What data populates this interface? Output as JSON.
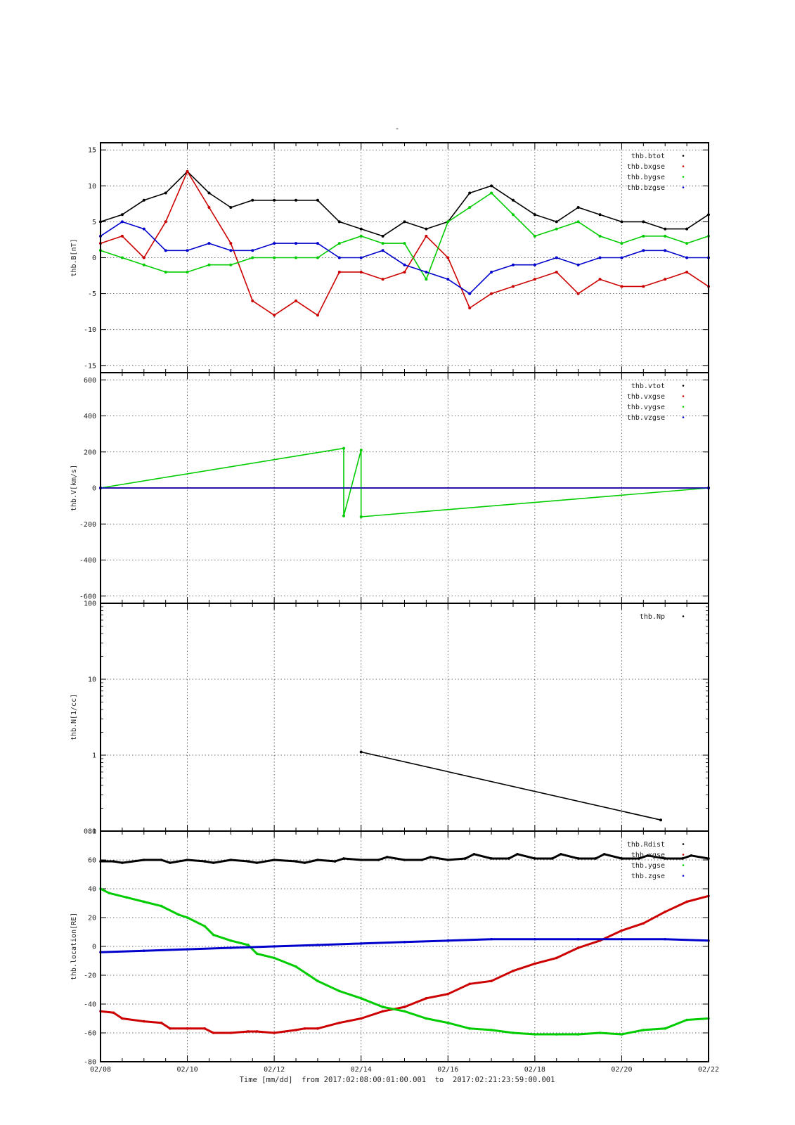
{
  "header": {
    "title": "-"
  },
  "footer": {
    "x_axis_label": "Time [mm/dd]  from 2017:02:08:00:01:00.001  to  2017:02:21:23:59:00.001"
  },
  "x_axis": {
    "range": [
      0,
      14
    ],
    "ticks": [
      {
        "v": 0,
        "label": "02/08"
      },
      {
        "v": 2,
        "label": "02/10"
      },
      {
        "v": 4,
        "label": "02/12"
      },
      {
        "v": 6,
        "label": "02/14"
      },
      {
        "v": 8,
        "label": "02/16"
      },
      {
        "v": 10,
        "label": "02/18"
      },
      {
        "v": 12,
        "label": "02/20"
      },
      {
        "v": 14,
        "label": "02/22"
      }
    ]
  },
  "chart_data": [
    {
      "type": "scatter",
      "ylabel": "thb.B[nT]",
      "ylim": [
        -16,
        16
      ],
      "yticks": [
        -15,
        -10,
        -5,
        0,
        5,
        10,
        15
      ],
      "ytick_labels": [
        "-15",
        "-10",
        "-5",
        "0",
        "5",
        "10",
        "15"
      ],
      "grid": true,
      "legend": "top-right",
      "series": [
        {
          "name": "thb.btot",
          "color": "#000000",
          "x": [
            0,
            0.5,
            1,
            1.5,
            2,
            2.5,
            3,
            3.5,
            4,
            4.5,
            5,
            5.5,
            6,
            6.5,
            7,
            7.5,
            8,
            8.5,
            9,
            9.5,
            10,
            10.5,
            11,
            11.5,
            12,
            12.5,
            13,
            13.5,
            14
          ],
          "y": [
            5,
            6,
            8,
            9,
            12,
            9,
            7,
            8,
            8,
            8,
            8,
            5,
            4,
            3,
            5,
            4,
            5,
            9,
            10,
            8,
            6,
            5,
            7,
            6,
            5,
            5,
            4,
            4,
            6
          ]
        },
        {
          "name": "thb.bxgse",
          "color": "#cc0000",
          "x": [
            0,
            0.5,
            1,
            1.5,
            2,
            2.5,
            3,
            3.5,
            4,
            4.5,
            5,
            5.5,
            6,
            6.5,
            7,
            7.5,
            8,
            8.5,
            9,
            9.5,
            10,
            10.5,
            11,
            11.5,
            12,
            12.5,
            13,
            13.5,
            14
          ],
          "y": [
            2,
            3,
            0,
            5,
            12,
            7,
            2,
            -6,
            -8,
            -6,
            -8,
            -2,
            -2,
            -3,
            -2,
            3,
            0,
            -7,
            -5,
            -4,
            -3,
            -2,
            -5,
            -3,
            -4,
            -4,
            -3,
            -2,
            -4
          ]
        },
        {
          "name": "thb.bygse",
          "color": "#00cc00",
          "x": [
            0,
            0.5,
            1,
            1.5,
            2,
            2.5,
            3,
            3.5,
            4,
            4.5,
            5,
            5.5,
            6,
            6.5,
            7,
            7.5,
            8,
            8.5,
            9,
            9.5,
            10,
            10.5,
            11,
            11.5,
            12,
            12.5,
            13,
            13.5,
            14
          ],
          "y": [
            1,
            0,
            -1,
            -2,
            -2,
            -1,
            -1,
            0,
            0,
            0,
            0,
            2,
            3,
            2,
            2,
            -3,
            5,
            7,
            9,
            6,
            3,
            4,
            5,
            3,
            2,
            3,
            3,
            2,
            3
          ]
        },
        {
          "name": "thb.bzgse",
          "color": "#0000cc",
          "x": [
            0,
            0.5,
            1,
            1.5,
            2,
            2.5,
            3,
            3.5,
            4,
            4.5,
            5,
            5.5,
            6,
            6.5,
            7,
            7.5,
            8,
            8.5,
            9,
            9.5,
            10,
            10.5,
            11,
            11.5,
            12,
            12.5,
            13,
            13.5,
            14
          ],
          "y": [
            3,
            5,
            4,
            1,
            1,
            2,
            1,
            1,
            2,
            2,
            2,
            0,
            0,
            1,
            -1,
            -2,
            -3,
            -5,
            -2,
            -1,
            -1,
            0,
            -1,
            0,
            0,
            1,
            1,
            0,
            0
          ]
        }
      ]
    },
    {
      "type": "scatter",
      "ylabel": "thb.V[km/s]",
      "ylim": [
        -640,
        640
      ],
      "yticks": [
        -600,
        -400,
        -200,
        0,
        200,
        400,
        600
      ],
      "ytick_labels": [
        "-600",
        "-400",
        "-200",
        "0",
        "200",
        "400",
        "600"
      ],
      "grid": true,
      "legend": "top-right",
      "series": [
        {
          "name": "thb.vtot",
          "color": "#000000",
          "x": [
            0,
            14
          ],
          "y": [
            0,
            0
          ]
        },
        {
          "name": "thb.vxgse",
          "color": "#cc0000",
          "x": [
            0,
            14
          ],
          "y": [
            0,
            0
          ]
        },
        {
          "name": "thb.vygse",
          "color": "#00cc00",
          "x": [
            0,
            5.6,
            5.6,
            6,
            6,
            14
          ],
          "y": [
            0,
            220,
            -155,
            210,
            -160,
            0
          ]
        },
        {
          "name": "thb.vzgse",
          "color": "#0000cc",
          "x": [
            0,
            14
          ],
          "y": [
            0,
            0
          ]
        }
      ]
    },
    {
      "type": "scatter",
      "ylabel": "thb.N[1/cc]",
      "yscale": "log",
      "ylim": [
        0.1,
        100
      ],
      "yticks": [
        0.1,
        1,
        10,
        100
      ],
      "ytick_labels": [
        "0.1",
        "1",
        "10",
        "100"
      ],
      "grid": true,
      "legend": "top-right",
      "series": [
        {
          "name": "thb.Np",
          "color": "#000000",
          "x": [
            6,
            12.9
          ],
          "y": [
            1.1,
            0.14
          ]
        }
      ]
    },
    {
      "type": "line",
      "ylabel": "thb.location[RE]",
      "ylim": [
        -80,
        80
      ],
      "yticks": [
        -80,
        -60,
        -40,
        -20,
        0,
        20,
        40,
        60,
        80
      ],
      "ytick_labels": [
        "-80",
        "-60",
        "-40",
        "-20",
        "0",
        "20",
        "40",
        "60",
        "80"
      ],
      "grid": true,
      "legend": "top-right",
      "series": [
        {
          "name": "thb.Rdist",
          "color": "#000000",
          "x": [
            0,
            0.3,
            0.5,
            1,
            1.4,
            1.6,
            2,
            2.4,
            2.6,
            3,
            3.4,
            3.6,
            4,
            4.5,
            4.7,
            5,
            5.4,
            5.6,
            6,
            6.4,
            6.6,
            7,
            7.4,
            7.6,
            8,
            8.4,
            8.6,
            9,
            9.4,
            9.6,
            10,
            10.4,
            10.6,
            11,
            11.4,
            11.6,
            12,
            12.4,
            12.6,
            13,
            13.4,
            13.6,
            14
          ],
          "y": [
            59,
            59,
            58,
            60,
            60,
            58,
            60,
            59,
            58,
            60,
            59,
            58,
            60,
            59,
            58,
            60,
            59,
            61,
            60,
            60,
            62,
            60,
            60,
            62,
            60,
            61,
            64,
            61,
            61,
            64,
            61,
            61,
            64,
            61,
            61,
            64,
            61,
            61,
            63,
            61,
            61,
            63,
            61
          ]
        },
        {
          "name": "thb.xgse",
          "color": "#cc0000",
          "x": [
            0,
            0.3,
            0.5,
            1,
            1.4,
            1.6,
            2,
            2.4,
            2.6,
            3,
            3.4,
            3.6,
            4,
            4.5,
            4.7,
            5,
            5.5,
            6,
            6.5,
            7,
            7.5,
            8,
            8.5,
            9,
            9.5,
            10,
            10.5,
            11,
            11.5,
            12,
            12.5,
            13,
            13.5,
            14
          ],
          "y": [
            -45,
            -46,
            -50,
            -52,
            -53,
            -57,
            -57,
            -57,
            -60,
            -60,
            -59,
            -59,
            -60,
            -58,
            -57,
            -57,
            -53,
            -50,
            -45,
            -42,
            -36,
            -33,
            -26,
            -24,
            -17,
            -12,
            -8,
            -1,
            4,
            11,
            16,
            24,
            31,
            35
          ]
        },
        {
          "name": "thb.ygse",
          "color": "#00cc00",
          "x": [
            0,
            0.2,
            0.6,
            1,
            1.4,
            1.8,
            2,
            2.4,
            2.6,
            3,
            3.4,
            3.6,
            4,
            4.5,
            4.8,
            5,
            5.5,
            6,
            6.5,
            7,
            7.5,
            8,
            8.5,
            9,
            9.5,
            10,
            10.5,
            11,
            11.5,
            12,
            12.5,
            13,
            13.5,
            14
          ],
          "y": [
            40,
            37,
            34,
            31,
            28,
            22,
            20,
            14,
            8,
            4,
            1,
            -5,
            -8,
            -14,
            -20,
            -24,
            -31,
            -36,
            -42,
            -45,
            -50,
            -53,
            -57,
            -58,
            -60,
            -61,
            -61,
            -61,
            -60,
            -61,
            -58,
            -57,
            -51,
            -50
          ]
        },
        {
          "name": "thb.zgse",
          "color": "#0000cc",
          "x": [
            0,
            1,
            2,
            3,
            4,
            5,
            6,
            7,
            8,
            9,
            10,
            11,
            12,
            13,
            14
          ],
          "y": [
            -4,
            -3,
            -2,
            -1,
            0,
            1,
            2,
            3,
            4,
            5,
            5,
            5,
            5,
            5,
            4
          ]
        }
      ]
    }
  ]
}
